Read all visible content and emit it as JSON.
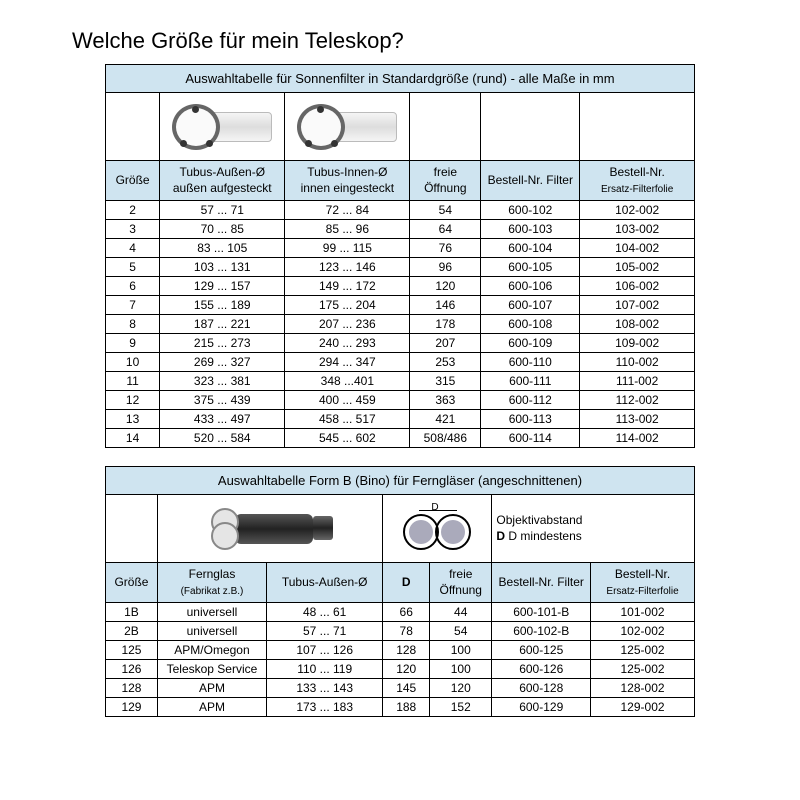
{
  "title": "Welche Größe für mein Teleskop?",
  "table1": {
    "caption": "Auswahltabelle für Sonnenfilter in Standardgröße (rund) - alle Maße in mm",
    "headers": {
      "size": "Größe",
      "outer": "Tubus-Außen-Ø",
      "outer_sub": "außen aufgesteckt",
      "inner": "Tubus-Innen-Ø",
      "inner_sub": "innen eingesteckt",
      "opening": "freie Öffnung",
      "order_filter": "Bestell-Nr. Filter",
      "order_foil": "Bestell-Nr.",
      "order_foil_sub": "Ersatz-Filterfolie"
    },
    "rows": [
      {
        "s": "2",
        "a": "57 ... 71",
        "b": "72 ... 84",
        "c": "54",
        "d": "600-102",
        "e": "102-002"
      },
      {
        "s": "3",
        "a": "70 ... 85",
        "b": "85 ... 96",
        "c": "64",
        "d": "600-103",
        "e": "103-002"
      },
      {
        "s": "4",
        "a": "83 ... 105",
        "b": "99 ... 115",
        "c": "76",
        "d": "600-104",
        "e": "104-002"
      },
      {
        "s": "5",
        "a": "103 ... 131",
        "b": "123 ... 146",
        "c": "96",
        "d": "600-105",
        "e": "105-002"
      },
      {
        "s": "6",
        "a": "129 ... 157",
        "b": "149 ... 172",
        "c": "120",
        "d": "600-106",
        "e": "106-002"
      },
      {
        "s": "7",
        "a": "155 ... 189",
        "b": "175 ... 204",
        "c": "146",
        "d": "600-107",
        "e": "107-002"
      },
      {
        "s": "8",
        "a": "187 ... 221",
        "b": "207 ... 236",
        "c": "178",
        "d": "600-108",
        "e": "108-002"
      },
      {
        "s": "9",
        "a": "215 ... 273",
        "b": "240 ... 293",
        "c": "207",
        "d": "600-109",
        "e": "109-002"
      },
      {
        "s": "10",
        "a": "269 ... 327",
        "b": "294 ... 347",
        "c": "253",
        "d": "600-110",
        "e": "110-002"
      },
      {
        "s": "11",
        "a": "323 ... 381",
        "b": "348 ...401",
        "c": "315",
        "d": "600-111",
        "e": "111-002"
      },
      {
        "s": "12",
        "a": "375 ... 439",
        "b": "400 ... 459",
        "c": "363",
        "d": "600-112",
        "e": "112-002"
      },
      {
        "s": "13",
        "a": "433 ... 497",
        "b": "458 ... 517",
        "c": "421",
        "d": "600-113",
        "e": "113-002"
      },
      {
        "s": "14",
        "a": "520 ... 584",
        "b": "545 ... 602",
        "c": "508/486",
        "d": "600-114",
        "e": "114-002"
      }
    ]
  },
  "table2": {
    "caption": "Auswahltabelle Form B (Bino) für Ferngläser  (angeschnittenen)",
    "obj_text": "Objektivabstand",
    "obj_text2": "D mindestens",
    "d_label": "D",
    "headers": {
      "size": "Größe",
      "bino": "Fernglas",
      "bino_sub": "(Fabrikat z.B.)",
      "outer": "Tubus-Außen-Ø",
      "d": "D",
      "opening": "freie Öffnung",
      "order_filter": "Bestell-Nr. Filter",
      "order_foil": "Bestell-Nr.",
      "order_foil_sub": "Ersatz-Filterfolie"
    },
    "rows": [
      {
        "s": "1B",
        "f": "universell",
        "t": "48 ... 61",
        "d": "66",
        "o": "44",
        "bf": "600-101-B",
        "be": "101-002"
      },
      {
        "s": "2B",
        "f": "universell",
        "t": "57 ... 71",
        "d": "78",
        "o": "54",
        "bf": "600-102-B",
        "be": "102-002"
      },
      {
        "s": "125",
        "f": "APM/Omegon",
        "t": "107 ... 126",
        "d": "128",
        "o": "100",
        "bf": "600-125",
        "be": "125-002"
      },
      {
        "s": "126",
        "f": "Teleskop Service",
        "t": "110 ... 119",
        "d": "120",
        "o": "100",
        "bf": "600-126",
        "be": "125-002"
      },
      {
        "s": "128",
        "f": "APM",
        "t": "133 ... 143",
        "d": "145",
        "o": "120",
        "bf": "600-128",
        "be": "128-002"
      },
      {
        "s": "129",
        "f": "APM",
        "t": "173 ... 183",
        "d": "188",
        "o": "152",
        "bf": "600-129",
        "be": "129-002"
      }
    ]
  }
}
